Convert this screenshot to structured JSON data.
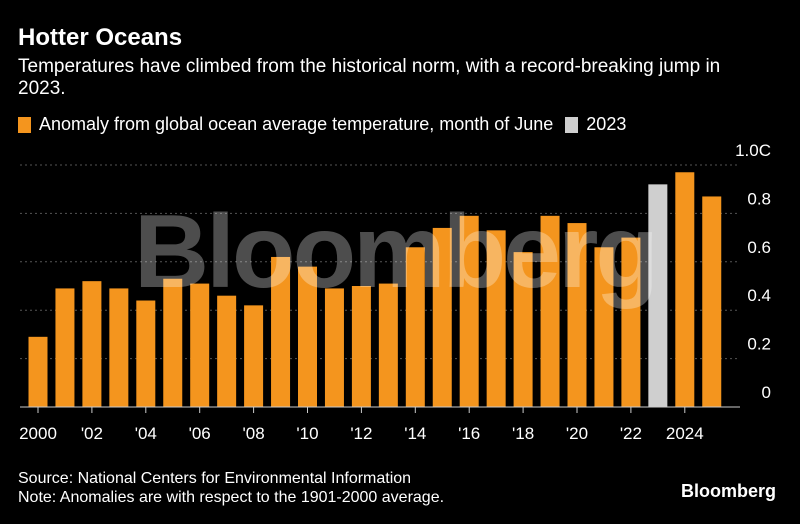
{
  "chart_data": {
    "type": "bar",
    "title": "Hotter Oceans",
    "subtitle": "Temperatures have climbed from the historical norm, with a record-breaking jump in 2023.",
    "legend": [
      {
        "label": "Anomaly from global ocean average temperature, month of June",
        "color": "#F4951E"
      },
      {
        "label": "2023",
        "color": "#CFCFCF"
      }
    ],
    "categories": [
      2000,
      2001,
      2002,
      2003,
      2004,
      2005,
      2006,
      2007,
      2008,
      2009,
      2010,
      2011,
      2012,
      2013,
      2014,
      2015,
      2016,
      2017,
      2018,
      2019,
      2020,
      2021,
      2022,
      2023,
      2024,
      2025
    ],
    "values": [
      0.29,
      0.49,
      0.52,
      0.49,
      0.44,
      0.53,
      0.51,
      0.46,
      0.42,
      0.62,
      0.58,
      0.49,
      0.5,
      0.51,
      0.66,
      0.74,
      0.79,
      0.73,
      0.64,
      0.79,
      0.76,
      0.66,
      0.7,
      0.92,
      0.97,
      0.87
    ],
    "highlight": {
      "category": 2023,
      "color": "#CFCFCF"
    },
    "bar_color": "#F4951E",
    "ylim": [
      0,
      1.0
    ],
    "yticks": [
      0,
      0.2,
      0.4,
      0.6,
      0.8,
      1.0
    ],
    "ytick_labels": [
      "0",
      "0.2",
      "0.4",
      "0.6",
      "0.8",
      "1.0C"
    ],
    "xtick_labels": [
      {
        "year": 2000,
        "label": "2000"
      },
      {
        "year": 2002,
        "label": "'02"
      },
      {
        "year": 2004,
        "label": "'04"
      },
      {
        "year": 2006,
        "label": "'06"
      },
      {
        "year": 2008,
        "label": "'08"
      },
      {
        "year": 2010,
        "label": "'10"
      },
      {
        "year": 2012,
        "label": "'12"
      },
      {
        "year": 2014,
        "label": "'14"
      },
      {
        "year": 2016,
        "label": "'16"
      },
      {
        "year": 2018,
        "label": "'18"
      },
      {
        "year": 2020,
        "label": "'20"
      },
      {
        "year": 2022,
        "label": "'22"
      },
      {
        "year": 2024,
        "label": "2024"
      }
    ],
    "grid": true,
    "watermark": "Bloomberg"
  },
  "footer": {
    "source": "Source: National Centers for Environmental Information",
    "note": "Note: Anomalies are with respect to the 1901-2000 average.",
    "brand": "Bloomberg"
  }
}
